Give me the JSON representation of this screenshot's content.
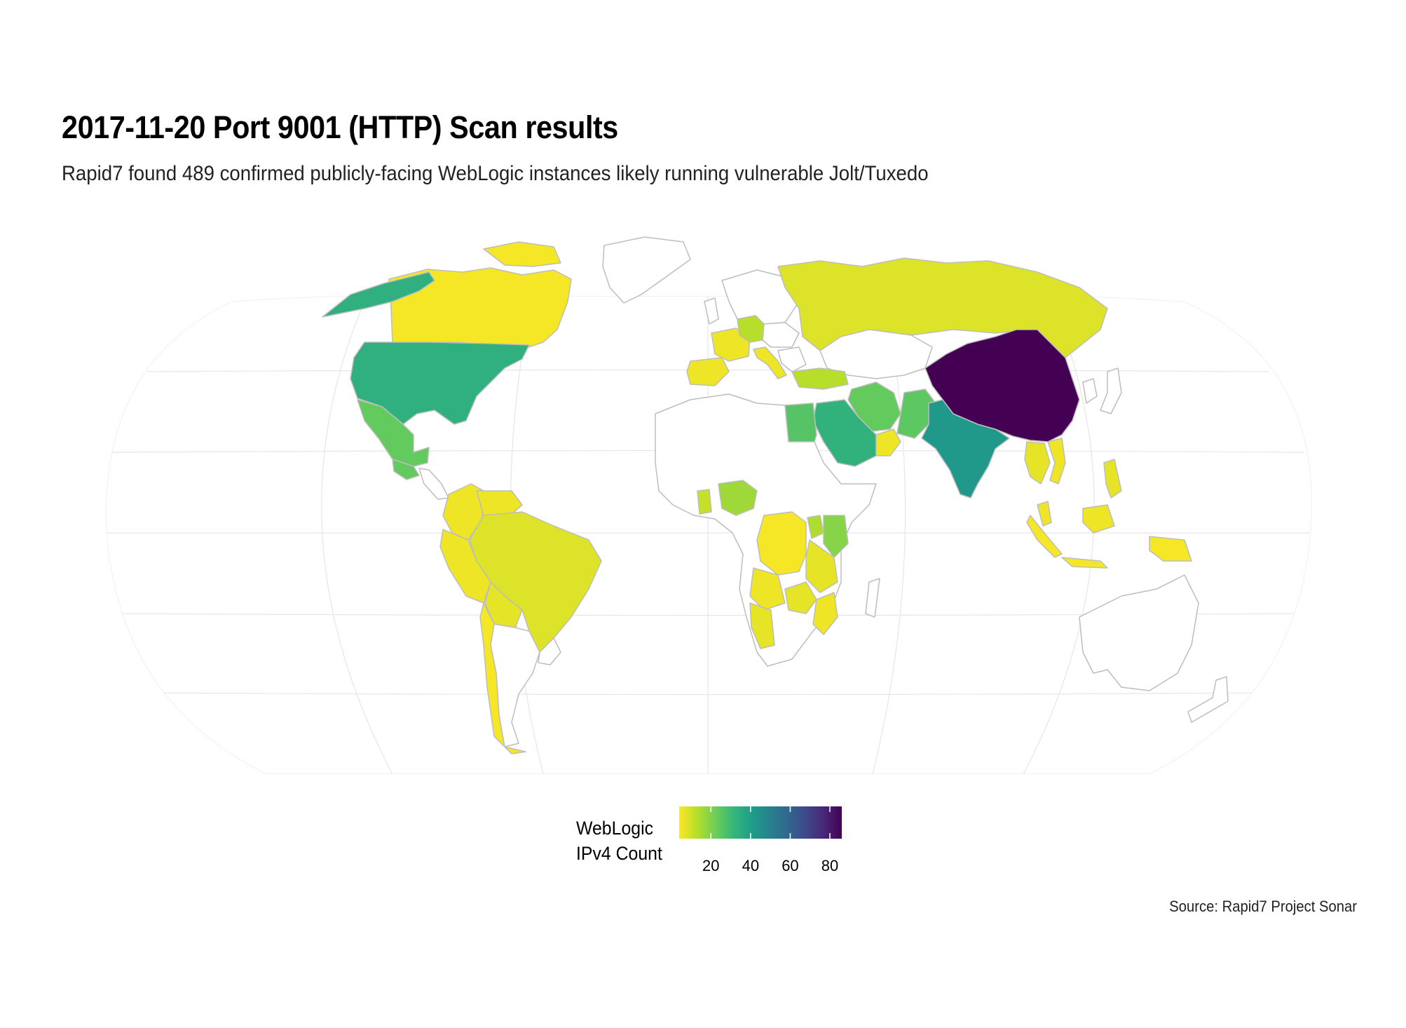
{
  "title": "2017-11-20 Port 9001 (HTTP) Scan results",
  "subtitle": "Rapid7 found 489 confirmed publicly-facing WebLogic instances likely running vulnerable Jolt/Tuxedo",
  "caption": "Source: Rapid7 Project Sonar",
  "legend": {
    "title_line1": "WebLogic",
    "title_line2": "IPv4 Count",
    "ticks": [
      "20",
      "40",
      "60",
      "80"
    ],
    "tick_values": [
      20,
      40,
      60,
      80
    ],
    "range": [
      4,
      86
    ],
    "colors": [
      "#fde725",
      "#b5de2b",
      "#6ece58",
      "#35b779",
      "#1f9e89",
      "#26828e",
      "#31688e",
      "#3e4989",
      "#482878",
      "#440154"
    ]
  },
  "chart_data": {
    "type": "choropleth",
    "projection": "Winkel tripel",
    "fill_variable": "WebLogic IPv4 Count",
    "countries": [
      {
        "name": "China",
        "value": 86
      },
      {
        "name": "India",
        "value": 42
      },
      {
        "name": "Pakistan",
        "value": 25
      },
      {
        "name": "United States",
        "value": 34
      },
      {
        "name": "Alaska (US)",
        "value": 34
      },
      {
        "name": "Mexico",
        "value": 24
      },
      {
        "name": "Guatemala",
        "value": 24
      },
      {
        "name": "Canada",
        "value": 5
      },
      {
        "name": "Saudi Arabia",
        "value": 33
      },
      {
        "name": "Egypt",
        "value": 26
      },
      {
        "name": "Iran",
        "value": 24
      },
      {
        "name": "Turkey",
        "value": 13
      },
      {
        "name": "Oman",
        "value": 6
      },
      {
        "name": "UAE",
        "value": 9
      },
      {
        "name": "Kenya",
        "value": 19
      },
      {
        "name": "Uganda",
        "value": 14
      },
      {
        "name": "Nigeria",
        "value": 16
      },
      {
        "name": "Ghana",
        "value": 11
      },
      {
        "name": "Brazil",
        "value": 8
      },
      {
        "name": "Russia",
        "value": 8
      },
      {
        "name": "Germany",
        "value": 13
      },
      {
        "name": "France",
        "value": 6
      },
      {
        "name": "Spain",
        "value": 6
      },
      {
        "name": "Italy",
        "value": 6
      },
      {
        "name": "DR Congo",
        "value": 5
      },
      {
        "name": "Tanzania",
        "value": 7
      },
      {
        "name": "Zambia",
        "value": 7
      },
      {
        "name": "Angola",
        "value": 6
      },
      {
        "name": "Namibia",
        "value": 7
      },
      {
        "name": "Mozambique",
        "value": 6
      },
      {
        "name": "Colombia",
        "value": 6
      },
      {
        "name": "Venezuela",
        "value": 6
      },
      {
        "name": "Peru",
        "value": 6
      },
      {
        "name": "Bolivia",
        "value": 7
      },
      {
        "name": "Chile",
        "value": 5
      },
      {
        "name": "Thailand",
        "value": 7
      },
      {
        "name": "Vietnam",
        "value": 6
      },
      {
        "name": "Malaysia",
        "value": 6
      },
      {
        "name": "Indonesia",
        "value": 5
      },
      {
        "name": "Philippines",
        "value": 7
      }
    ]
  }
}
